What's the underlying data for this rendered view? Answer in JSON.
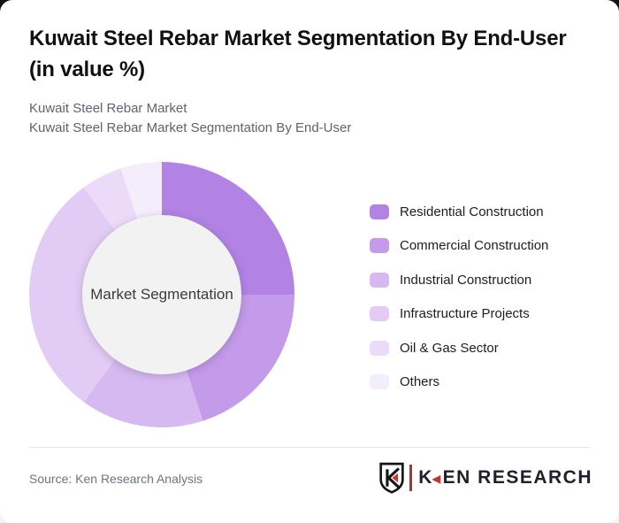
{
  "page": {
    "backdrop_top_color": "#141414",
    "backdrop_bottom_color": "#f3f3f3",
    "card_color": "#ffffff"
  },
  "header": {
    "title_lines": [
      "Kuwait Steel Rebar Market Segmentation By End-User",
      "(in value %)"
    ],
    "subtitle_lines": [
      "Kuwait Steel Rebar Market",
      "Kuwait Steel Rebar Market Segmentation By End-User"
    ]
  },
  "chart_data": {
    "type": "pie",
    "variant": "donut",
    "title": "Kuwait Steel Rebar Market Segmentation By End-User (in value %)",
    "center_label": "Market Segmentation",
    "labels": [
      "Residential Construction",
      "Commercial Construction",
      "Industrial Construction",
      "Infrastructure Projects",
      "Oil & Gas Sector",
      "Others"
    ],
    "values": [
      25,
      20,
      15,
      30,
      5,
      5
    ],
    "unit": "percent_of_value",
    "colors": [
      "#b283e5",
      "#c49aea",
      "#d7b9f2",
      "#e2ccf6",
      "#ebdbf9",
      "#f4edfc"
    ],
    "inner_circle_color": "#f2f2f2",
    "center_label_color": "#3b3b3b",
    "start_angle_deg": 0,
    "direction": "clockwise",
    "inner_radius_ratio": 0.6,
    "legend_position": "right",
    "data_labels_shown": false
  },
  "footer": {
    "source": "Source: Ken Research Analysis",
    "logo": {
      "letter_k": "K",
      "text_rest": "EN RESEARCH",
      "triangle_glyph": "◀",
      "accent_color": "#c9342b",
      "text_color": "#20202a"
    }
  }
}
